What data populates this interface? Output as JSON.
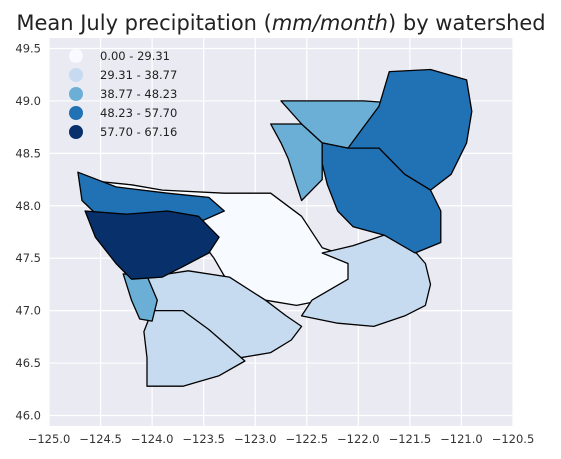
{
  "chart_data": {
    "type": "choropleth-map",
    "title": "Mean July precipitation (mm/month) by watershed",
    "title_parts": {
      "prefix": "Mean July precipitation (",
      "units": "mm/month",
      "suffix": ") by watershed"
    },
    "xlim": [
      -125.0,
      -120.5
    ],
    "ylim": [
      45.9,
      49.6
    ],
    "x_ticks": [
      -125.0,
      -124.5,
      -124.0,
      -123.5,
      -123.0,
      -122.5,
      -122.0,
      -121.5,
      -121.0,
      -120.5
    ],
    "x_tick_labels": [
      "−125.0",
      "−124.5",
      "−124.0",
      "−123.5",
      "−123.0",
      "−122.5",
      "−122.0",
      "−121.5",
      "−121.0",
      "−120.5"
    ],
    "y_ticks": [
      46.0,
      46.5,
      47.0,
      47.5,
      48.0,
      48.5,
      49.0,
      49.5
    ],
    "y_tick_labels": [
      "46.0",
      "46.5",
      "47.0",
      "47.5",
      "48.0",
      "48.5",
      "49.0",
      "49.5"
    ],
    "grid": true,
    "background_color": "#eaeaf2",
    "legend_position": "upper-left",
    "legend": [
      {
        "label": "0.00 - 29.31",
        "color": "#f7fbff"
      },
      {
        "label": "29.31 - 38.77",
        "color": "#c6dbef"
      },
      {
        "label": "38.77 - 48.23",
        "color": "#6baed6"
      },
      {
        "label": "48.23 - 57.70",
        "color": "#2171b5"
      },
      {
        "label": "57.70 - 67.16",
        "color": "#08306b"
      }
    ],
    "regions": [
      {
        "id": "puget-lowland",
        "class": 0,
        "points": [
          [
            -123.9,
            48.15
          ],
          [
            -123.3,
            48.12
          ],
          [
            -122.85,
            48.12
          ],
          [
            -122.55,
            47.9
          ],
          [
            -122.35,
            47.6
          ],
          [
            -122.2,
            47.55
          ],
          [
            -122.05,
            47.4
          ],
          [
            -122.05,
            47.25
          ],
          [
            -122.35,
            47.1
          ],
          [
            -122.6,
            47.05
          ],
          [
            -122.9,
            47.1
          ],
          [
            -123.15,
            47.25
          ],
          [
            -123.3,
            47.33
          ],
          [
            -123.4,
            47.5
          ],
          [
            -123.55,
            47.7
          ],
          [
            -123.8,
            47.8
          ],
          [
            -124.2,
            47.95
          ],
          [
            -124.5,
            48.05
          ],
          [
            -124.7,
            48.2
          ],
          [
            -124.5,
            48.23
          ],
          [
            -124.2,
            48.2
          ]
        ]
      },
      {
        "id": "cascades-south",
        "class": 1,
        "points": [
          [
            -122.35,
            47.55
          ],
          [
            -122.05,
            47.62
          ],
          [
            -121.75,
            47.72
          ],
          [
            -121.5,
            47.62
          ],
          [
            -121.35,
            47.45
          ],
          [
            -121.3,
            47.25
          ],
          [
            -121.35,
            47.05
          ],
          [
            -121.55,
            46.95
          ],
          [
            -121.85,
            46.85
          ],
          [
            -122.2,
            46.88
          ],
          [
            -122.55,
            46.95
          ],
          [
            -122.45,
            47.1
          ],
          [
            -122.1,
            47.3
          ],
          [
            -122.1,
            47.45
          ]
        ]
      },
      {
        "id": "chehalis",
        "class": 1,
        "points": [
          [
            -124.05,
            47.32
          ],
          [
            -123.65,
            47.38
          ],
          [
            -123.25,
            47.32
          ],
          [
            -122.9,
            47.1
          ],
          [
            -122.7,
            46.95
          ],
          [
            -122.55,
            46.85
          ],
          [
            -122.65,
            46.72
          ],
          [
            -122.85,
            46.6
          ],
          [
            -123.15,
            46.55
          ],
          [
            -123.45,
            46.52
          ],
          [
            -123.75,
            46.55
          ],
          [
            -123.95,
            46.6
          ],
          [
            -124.0,
            46.8
          ],
          [
            -124.02,
            47.1
          ]
        ]
      },
      {
        "id": "willapa",
        "class": 1,
        "points": [
          [
            -124.0,
            47.0
          ],
          [
            -123.7,
            47.0
          ],
          [
            -123.45,
            46.82
          ],
          [
            -123.25,
            46.65
          ],
          [
            -123.1,
            46.52
          ],
          [
            -123.35,
            46.38
          ],
          [
            -123.7,
            46.28
          ],
          [
            -124.05,
            46.28
          ],
          [
            -124.05,
            46.55
          ],
          [
            -124.08,
            46.8
          ]
        ]
      },
      {
        "id": "grays-harbor-coast",
        "class": 2,
        "points": [
          [
            -124.28,
            47.35
          ],
          [
            -124.05,
            47.33
          ],
          [
            -123.95,
            47.1
          ],
          [
            -124.0,
            46.9
          ],
          [
            -124.12,
            46.92
          ],
          [
            -124.2,
            47.1
          ]
        ]
      },
      {
        "id": "whidbey-san-juan",
        "class": 2,
        "points": [
          [
            -122.85,
            48.78
          ],
          [
            -122.55,
            48.78
          ],
          [
            -122.35,
            48.6
          ],
          [
            -122.35,
            48.25
          ],
          [
            -122.55,
            48.05
          ],
          [
            -122.6,
            48.2
          ],
          [
            -122.68,
            48.45
          ],
          [
            -122.75,
            48.6
          ]
        ]
      },
      {
        "id": "nooksack",
        "class": 2,
        "points": [
          [
            -122.75,
            49.0
          ],
          [
            -122.25,
            49.0
          ],
          [
            -121.95,
            49.0
          ],
          [
            -121.65,
            48.98
          ],
          [
            -121.5,
            48.88
          ],
          [
            -121.55,
            48.72
          ],
          [
            -121.85,
            48.62
          ],
          [
            -122.1,
            48.55
          ],
          [
            -122.35,
            48.6
          ],
          [
            -122.55,
            48.78
          ]
        ]
      },
      {
        "id": "cascades-north",
        "class": 3,
        "points": [
          [
            -121.7,
            49.28
          ],
          [
            -121.3,
            49.3
          ],
          [
            -120.95,
            49.2
          ],
          [
            -120.9,
            48.9
          ],
          [
            -120.95,
            48.6
          ],
          [
            -121.1,
            48.3
          ],
          [
            -121.3,
            48.15
          ],
          [
            -121.55,
            48.3
          ],
          [
            -121.8,
            48.55
          ],
          [
            -122.1,
            48.55
          ],
          [
            -121.95,
            48.75
          ],
          [
            -121.8,
            48.95
          ]
        ]
      },
      {
        "id": "skagit-snohomish",
        "class": 3,
        "points": [
          [
            -122.35,
            48.6
          ],
          [
            -122.1,
            48.55
          ],
          [
            -121.8,
            48.55
          ],
          [
            -121.55,
            48.3
          ],
          [
            -121.3,
            48.15
          ],
          [
            -121.2,
            47.95
          ],
          [
            -121.2,
            47.65
          ],
          [
            -121.45,
            47.55
          ],
          [
            -121.75,
            47.72
          ],
          [
            -122.05,
            47.8
          ],
          [
            -122.2,
            47.95
          ],
          [
            -122.3,
            48.2
          ],
          [
            -122.35,
            48.4
          ]
        ]
      },
      {
        "id": "olympic-north",
        "class": 3,
        "points": [
          [
            -124.72,
            48.32
          ],
          [
            -124.35,
            48.18
          ],
          [
            -123.85,
            48.12
          ],
          [
            -123.45,
            48.08
          ],
          [
            -123.3,
            47.95
          ],
          [
            -123.6,
            47.82
          ],
          [
            -124.05,
            47.8
          ],
          [
            -124.5,
            47.88
          ],
          [
            -124.68,
            48.05
          ]
        ]
      },
      {
        "id": "olympic-core",
        "class": 4,
        "points": [
          [
            -124.65,
            47.95
          ],
          [
            -124.25,
            47.92
          ],
          [
            -123.85,
            47.95
          ],
          [
            -123.55,
            47.9
          ],
          [
            -123.35,
            47.7
          ],
          [
            -123.45,
            47.55
          ],
          [
            -123.7,
            47.42
          ],
          [
            -123.9,
            47.32
          ],
          [
            -124.2,
            47.3
          ],
          [
            -124.35,
            47.45
          ],
          [
            -124.55,
            47.7
          ]
        ]
      }
    ]
  }
}
